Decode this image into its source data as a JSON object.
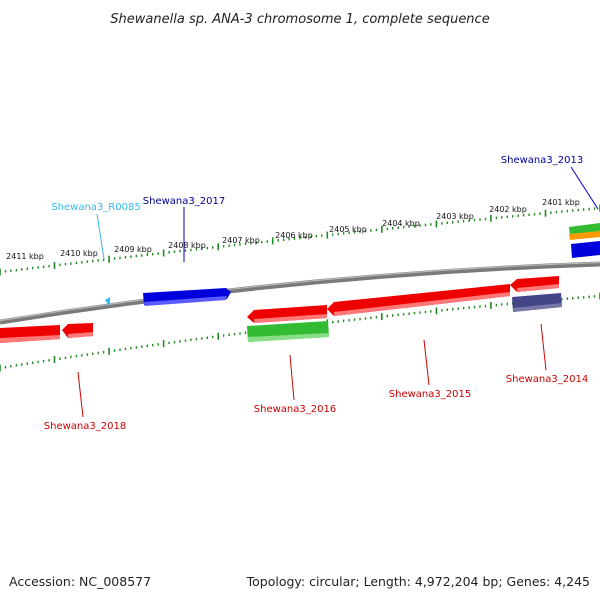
{
  "title": "Shewanella sp. ANA-3 chromosome 1, complete sequence",
  "footer": {
    "accession": "Accession: NC_008577",
    "summary": "Topology: circular; Length: 4,972,204 bp; Genes: 4,245"
  },
  "colors": {
    "backbone": "#808080",
    "ticks": "#228B22",
    "forward_gene": "#0000dd",
    "reverse_gene": "#ee0000",
    "green_feature": "#33bb33",
    "orange_feature": "#ff9900",
    "purple_feature": "#444488",
    "rna_feature": "#33bbee"
  },
  "ticks": [
    {
      "label": "2411 kbp"
    },
    {
      "label": "2410 kbp"
    },
    {
      "label": "2409 kbp"
    },
    {
      "label": "2408 kbp"
    },
    {
      "label": "2407 kbp"
    },
    {
      "label": "2406 kbp"
    },
    {
      "label": "2405 kbp"
    },
    {
      "label": "2404 kbp"
    },
    {
      "label": "2403 kbp"
    },
    {
      "label": "2402 kbp"
    },
    {
      "label": "2401 kbp"
    }
  ],
  "gene_labels": [
    {
      "name": "Shewana3_2013",
      "color": "#000099"
    },
    {
      "name": "Shewana3_R0085",
      "color": "#33bbee"
    },
    {
      "name": "Shewana3_2017",
      "color": "#000099"
    },
    {
      "name": "Shewana3_2018",
      "color": "#cc0000"
    },
    {
      "name": "Shewana3_2016",
      "color": "#cc0000"
    },
    {
      "name": "Shewana3_2015",
      "color": "#cc0000"
    },
    {
      "name": "Shewana3_2014",
      "color": "#cc0000"
    }
  ]
}
